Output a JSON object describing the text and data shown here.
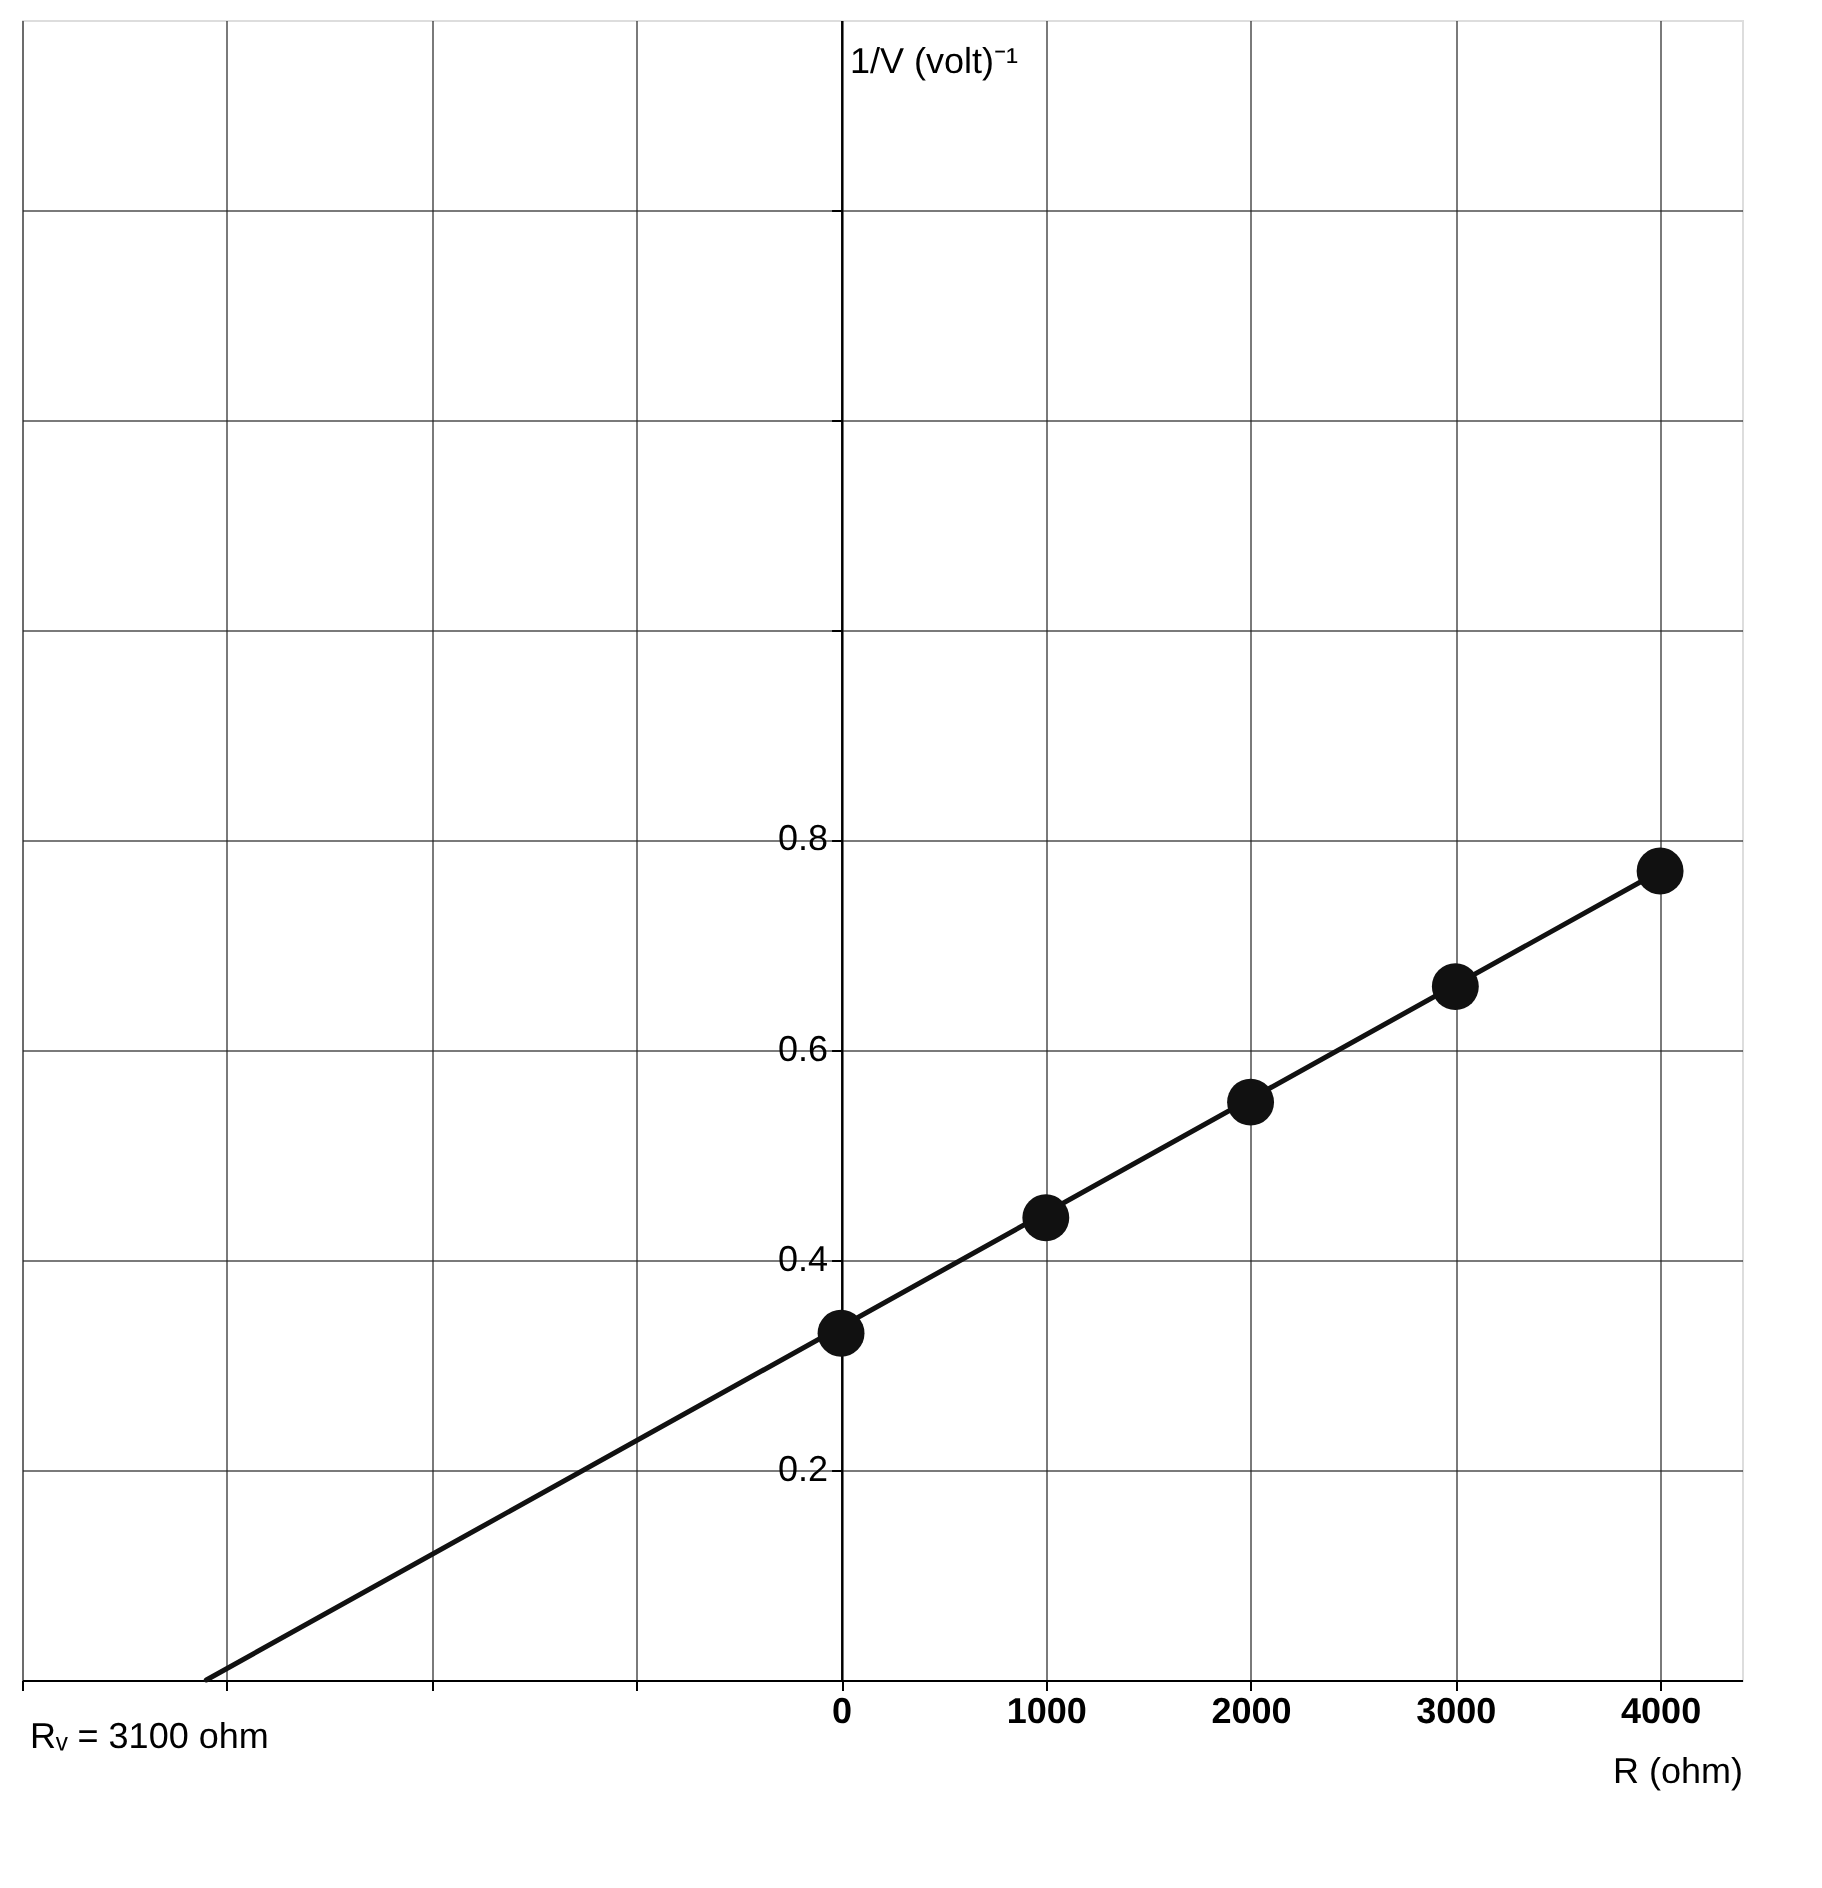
{
  "chart_data": {
    "type": "scatter",
    "xlabel": "R  (ohm)",
    "ylabel": "1/V (volt)⁻¹",
    "x": [
      0,
      1000,
      2000,
      3000,
      4000
    ],
    "series": [
      {
        "color": "#111111",
        "values": [
          0.33,
          0.44,
          0.55,
          0.66,
          0.77
        ]
      },
      {
        "type": "line",
        "marker": "none",
        "line_style": "solid",
        "color": "#111111",
        "x": [
          -3100,
          4000
        ],
        "values": [
          0,
          0.77
        ]
      }
    ],
    "marker": "circle",
    "xlim": [
      -4000,
      4400
    ],
    "ylim": [
      0,
      1.58
    ],
    "xticks": [
      {
        "value": -4000,
        "label": null
      },
      {
        "value": -3000,
        "label": null
      },
      {
        "value": -2000,
        "label": null
      },
      {
        "value": -1000,
        "label": null
      },
      0,
      1000,
      2000,
      3000,
      4000
    ],
    "yticks": [
      {
        "value": 0,
        "label": null
      },
      0.2,
      0.4,
      0.6,
      0.8,
      {
        "value": 1.0,
        "label": null
      },
      {
        "value": 1.2,
        "label": null
      },
      {
        "value": 1.4,
        "label": null
      }
    ],
    "grid": true,
    "annotations": [
      "Rᵥ = 3100 ohm"
    ]
  }
}
